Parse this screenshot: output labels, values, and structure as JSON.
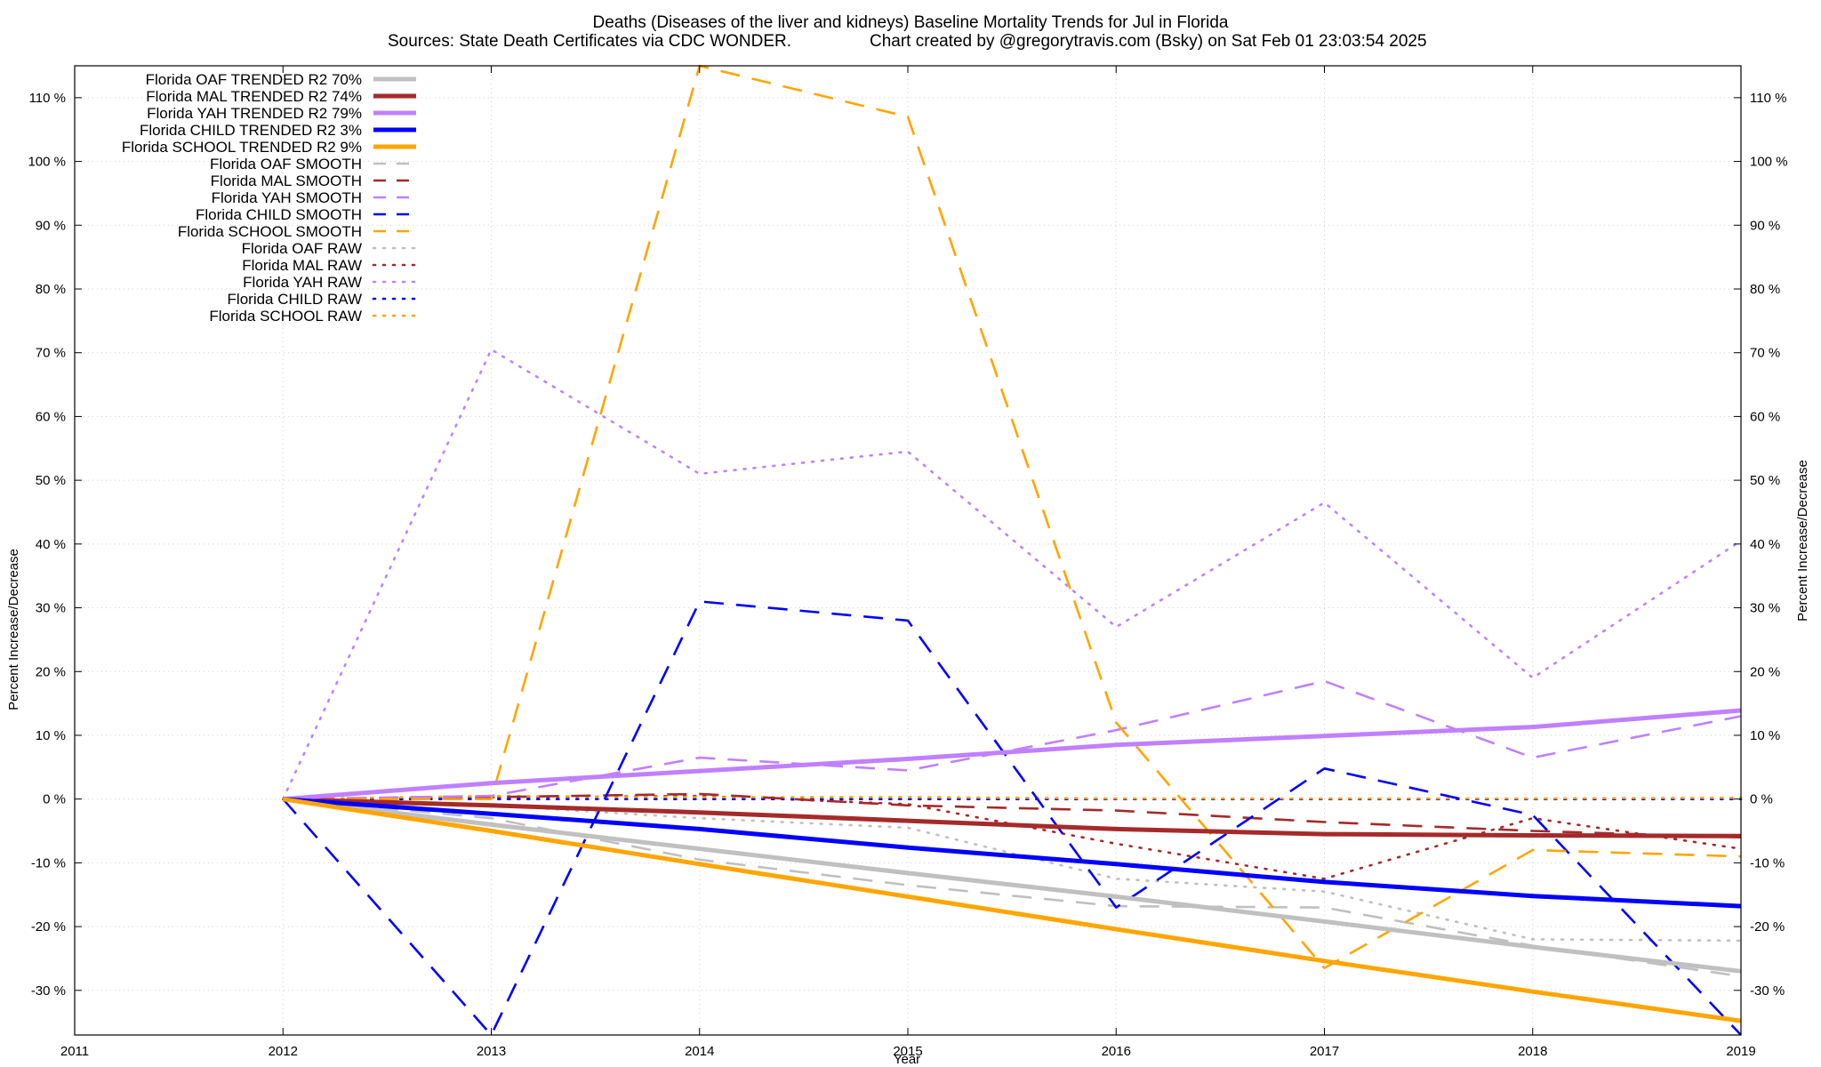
{
  "chart_data": {
    "type": "line",
    "title": "Deaths (Diseases of the liver and kidneys)  Baseline Mortality Trends for Jul in Florida",
    "subtitle_left": "Sources: State Death Certificates via CDC WONDER.",
    "subtitle_right": "Chart created by @gregorytravis.com (Bsky) on Sat Feb 01 23:03:54 2025",
    "xlabel": "Year",
    "ylabel": "Percent Increase/Decrease",
    "xlim": [
      2011,
      2019
    ],
    "ylim": [
      -37,
      115
    ],
    "x_ticks": [
      2011,
      2012,
      2013,
      2014,
      2015,
      2016,
      2017,
      2018,
      2019
    ],
    "y_ticks": [
      -30,
      -20,
      -10,
      0,
      10,
      20,
      30,
      40,
      50,
      60,
      70,
      80,
      90,
      100,
      110
    ],
    "y_tick_suffix": " %",
    "grid": true,
    "legend_position": "top-left",
    "x": [
      2012,
      2013,
      2014,
      2015,
      2016,
      2017,
      2018,
      2019
    ],
    "series": [
      {
        "name": "Florida OAF TRENDED R2  70%",
        "style": "solid",
        "color": "#c0c0c0",
        "values": [
          0,
          -4.0,
          -7.8,
          -11.6,
          -15.3,
          -19.2,
          -23.2,
          -27.0
        ]
      },
      {
        "name": "Florida MAL TRENDED R2  74%",
        "style": "solid",
        "color": "#a52a2a",
        "values": [
          0,
          -1.0,
          -2.1,
          -3.4,
          -4.7,
          -5.5,
          -5.7,
          -5.8
        ]
      },
      {
        "name": "Florida YAH TRENDED R2  79%",
        "style": "solid",
        "color": "#c080ff",
        "values": [
          0,
          2.5,
          4.4,
          6.3,
          8.5,
          9.9,
          11.3,
          13.9
        ]
      },
      {
        "name": "Florida CHILD TRENDED R2   3%",
        "style": "solid",
        "color": "#0000ff",
        "values": [
          0,
          -2.3,
          -4.7,
          -7.6,
          -10.2,
          -13.0,
          -15.2,
          -16.8
        ]
      },
      {
        "name": "Florida SCHOOL TRENDED R2   9%",
        "style": "solid",
        "color": "#ffa500",
        "values": [
          0,
          -5.0,
          -10.2,
          -15.3,
          -20.4,
          -25.4,
          -30.2,
          -34.8
        ]
      },
      {
        "name": "Florida OAF SMOOTH",
        "style": "dashed",
        "color": "#c0c0c0",
        "values": [
          0,
          -3.0,
          -9.5,
          -13.5,
          -16.8,
          -17.0,
          -23.0,
          -27.8
        ]
      },
      {
        "name": "Florida MAL SMOOTH",
        "style": "dashed",
        "color": "#a52a2a",
        "values": [
          0,
          0.3,
          0.8,
          -1.0,
          -1.8,
          -3.6,
          -5.0,
          -6.0
        ]
      },
      {
        "name": "Florida YAH SMOOTH",
        "style": "dashed",
        "color": "#c080ff",
        "values": [
          0,
          0.5,
          6.5,
          4.5,
          10.8,
          18.5,
          6.5,
          13.0
        ]
      },
      {
        "name": "Florida CHILD SMOOTH",
        "style": "dashed",
        "color": "#0000ff",
        "values": [
          0,
          -37.0,
          31.0,
          28.0,
          -17.0,
          4.8,
          -2.5,
          -37.0
        ]
      },
      {
        "name": "Florida SCHOOL SMOOTH",
        "style": "dashed",
        "color": "#ffa500",
        "values": [
          0,
          0,
          115.0,
          107.0,
          12.0,
          -26.5,
          -8.0,
          -9.0
        ]
      },
      {
        "name": "Florida OAF RAW",
        "style": "dotted",
        "color": "#c0c0c0",
        "values": [
          0,
          -1.0,
          -3.0,
          -4.5,
          -12.5,
          -14.5,
          -22.0,
          -22.2
        ]
      },
      {
        "name": "Florida MAL RAW",
        "style": "dotted",
        "color": "#a52a2a",
        "values": [
          0,
          0.3,
          0.5,
          -0.8,
          -7.0,
          -12.5,
          -3.0,
          -7.8
        ]
      },
      {
        "name": "Florida YAH RAW",
        "style": "dotted",
        "color": "#c080ff",
        "values": [
          0,
          70.5,
          51.0,
          54.5,
          27.0,
          46.5,
          19.0,
          40.5
        ]
      },
      {
        "name": "Florida CHILD RAW",
        "style": "dotted",
        "color": "#0000ff",
        "values": [
          0,
          0,
          0,
          0,
          0,
          0,
          0,
          0
        ]
      },
      {
        "name": "Florida SCHOOL RAW",
        "style": "dotted",
        "color": "#ffa500",
        "values": [
          0,
          0.5,
          0.3,
          0.3,
          0.1,
          0.1,
          0.1,
          0.2
        ]
      }
    ]
  }
}
